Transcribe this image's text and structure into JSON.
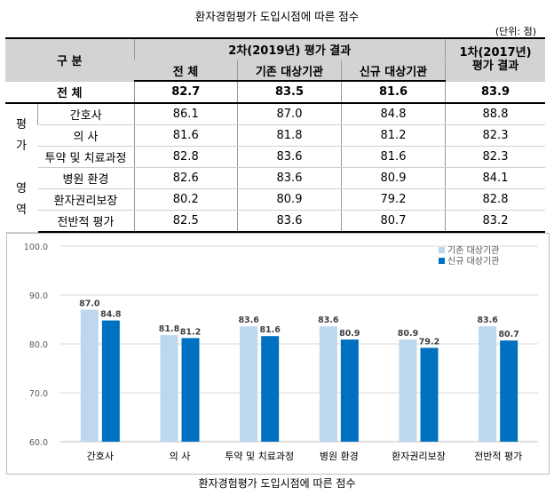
{
  "title": "환자경험평가 도입시점에 따른 점수",
  "unit": "(단위: 점)",
  "table": {
    "header": {
      "group": "구  분",
      "second_round": "2차(2019년) 평가 결과",
      "first_round_line1": "1차(2017년)",
      "first_round_line2": "평가 결과",
      "col_total": "전      체",
      "col_existing": "기존 대상기관",
      "col_new": "신규 대상기관"
    },
    "total_row": {
      "label": "전      체",
      "total": "82.7",
      "existing": "83.5",
      "new": "81.6",
      "first": "83.9"
    },
    "area_label_chars": [
      "평",
      "가",
      "",
      "영",
      "역"
    ],
    "rows": [
      {
        "label": "간호사",
        "total": "86.1",
        "existing": "87.0",
        "new": "84.8",
        "first": "88.8"
      },
      {
        "label": "의    사",
        "total": "81.6",
        "existing": "81.8",
        "new": "81.2",
        "first": "82.3"
      },
      {
        "label": "투약 및 치료과정",
        "total": "82.8",
        "existing": "83.6",
        "new": "81.6",
        "first": "82.3"
      },
      {
        "label": "병원 환경",
        "total": "82.6",
        "existing": "83.6",
        "new": "80.9",
        "first": "84.1"
      },
      {
        "label": "환자권리보장",
        "total": "80.2",
        "existing": "80.9",
        "new": "79.2",
        "first": "82.8"
      },
      {
        "label": "전반적 평가",
        "total": "82.5",
        "existing": "83.6",
        "new": "80.7",
        "first": "83.2"
      }
    ]
  },
  "chart_data": {
    "type": "bar",
    "categories": [
      "간호사",
      "의    사",
      "투약 및 치료과정",
      "병원 환경",
      "환자권리보장",
      "전반적 평가"
    ],
    "series": [
      {
        "name": "기존 대상기관",
        "values": [
          87.0,
          81.8,
          83.6,
          83.6,
          80.9,
          83.6
        ],
        "color": "#bdd7ee"
      },
      {
        "name": "신규 대상기관",
        "values": [
          84.8,
          81.2,
          81.6,
          80.9,
          79.2,
          80.7
        ],
        "color": "#0070c0"
      }
    ],
    "data_labels": [
      [
        "87.0",
        "81.8",
        "83.6",
        "83.6",
        "80.9",
        "83.6"
      ],
      [
        "84.8",
        "81.2",
        "81.6",
        "80.9",
        "79.2",
        "80.7"
      ]
    ],
    "yticks": [
      "60.0",
      "70.0",
      "80.0",
      "90.0",
      "100.0"
    ],
    "ylim": [
      60,
      100
    ],
    "legend_position": "top-right",
    "grid": true,
    "gridline_color": "#d9d9d9"
  },
  "caption": "환자경험평가 도입시점에 따른 점수"
}
